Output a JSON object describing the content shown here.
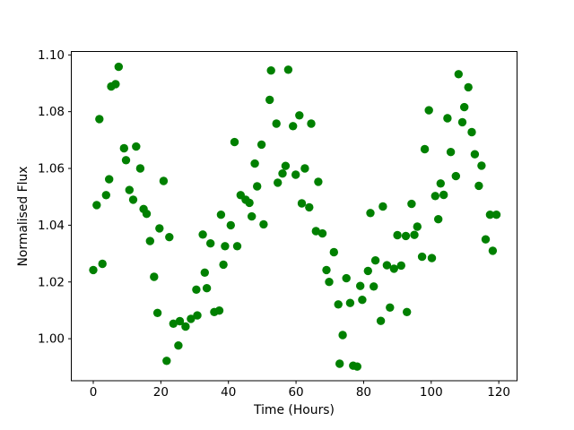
{
  "figure": {
    "background": "#ffffff",
    "border_color": "#000000"
  },
  "chart_data": {
    "type": "scatter",
    "title": "",
    "xlabel": "Time (Hours)",
    "ylabel": "Normalised Flux",
    "xlim": [
      -6.5,
      125.4
    ],
    "ylim": [
      0.9852,
      1.1012
    ],
    "xticks": [
      0,
      20,
      40,
      60,
      80,
      100,
      120
    ],
    "yticks": [
      1.0,
      1.02,
      1.04,
      1.06,
      1.08,
      1.1
    ],
    "ytick_decimals": 2,
    "grid": false,
    "legend_position": "none",
    "marker": {
      "shape": "circle",
      "color": "#008000",
      "radius_px": 4.7
    },
    "points": [
      [
        0.0,
        1.0242
      ],
      [
        1.0,
        1.0471
      ],
      [
        1.8,
        1.0774
      ],
      [
        2.7,
        1.0264
      ],
      [
        3.8,
        1.0506
      ],
      [
        4.7,
        1.0562
      ],
      [
        5.3,
        1.0889
      ],
      [
        6.6,
        1.0897
      ],
      [
        7.5,
        1.0958
      ],
      [
        9.1,
        1.0671
      ],
      [
        9.7,
        1.0629
      ],
      [
        10.7,
        1.0524
      ],
      [
        11.8,
        1.049
      ],
      [
        12.7,
        1.0677
      ],
      [
        13.9,
        1.06
      ],
      [
        14.9,
        1.0457
      ],
      [
        15.8,
        1.044
      ],
      [
        16.8,
        1.0344
      ],
      [
        18.0,
        1.0218
      ],
      [
        19.0,
        1.0091
      ],
      [
        19.6,
        1.0389
      ],
      [
        20.8,
        1.0556
      ],
      [
        21.7,
        0.9922
      ],
      [
        22.5,
        1.0358
      ],
      [
        23.7,
        1.0053
      ],
      [
        25.2,
        0.9976
      ],
      [
        25.6,
        1.0062
      ],
      [
        27.3,
        1.0043
      ],
      [
        28.9,
        1.007
      ],
      [
        30.5,
        1.0173
      ],
      [
        30.8,
        1.0082
      ],
      [
        32.4,
        1.0367
      ],
      [
        33.0,
        1.0233
      ],
      [
        33.6,
        1.0178
      ],
      [
        34.7,
        1.0336
      ],
      [
        35.8,
        1.0094
      ],
      [
        37.3,
        1.0099
      ],
      [
        37.8,
        1.0437
      ],
      [
        38.5,
        1.0261
      ],
      [
        39.0,
        1.0326
      ],
      [
        40.7,
        1.04
      ],
      [
        41.8,
        1.0693
      ],
      [
        42.6,
        1.0326
      ],
      [
        43.6,
        1.0506
      ],
      [
        45.1,
        1.049
      ],
      [
        46.2,
        1.0479
      ],
      [
        46.9,
        1.0431
      ],
      [
        47.8,
        1.0617
      ],
      [
        48.5,
        1.0537
      ],
      [
        49.8,
        1.0684
      ],
      [
        50.4,
        1.0403
      ],
      [
        52.2,
        1.0842
      ],
      [
        52.6,
        1.0945
      ],
      [
        54.2,
        1.0758
      ],
      [
        54.6,
        1.055
      ],
      [
        56.0,
        1.0582
      ],
      [
        56.9,
        1.0609
      ],
      [
        57.7,
        1.0948
      ],
      [
        59.1,
        1.0749
      ],
      [
        59.9,
        1.0578
      ],
      [
        61.0,
        1.0787
      ],
      [
        61.7,
        1.0477
      ],
      [
        62.6,
        1.06
      ],
      [
        63.9,
        1.0463
      ],
      [
        64.5,
        1.0758
      ],
      [
        65.9,
        1.0379
      ],
      [
        66.6,
        1.0553
      ],
      [
        67.8,
        1.0371
      ],
      [
        69.0,
        1.0242
      ],
      [
        69.8,
        1.02
      ],
      [
        71.2,
        1.0305
      ],
      [
        72.5,
        1.0121
      ],
      [
        72.9,
        0.9912
      ],
      [
        73.8,
        1.0013
      ],
      [
        74.9,
        1.0213
      ],
      [
        76.0,
        1.0126
      ],
      [
        76.9,
        0.9905
      ],
      [
        78.1,
        0.9902
      ],
      [
        79.0,
        1.0186
      ],
      [
        79.6,
        1.0137
      ],
      [
        81.3,
        1.0239
      ],
      [
        82.0,
        1.0443
      ],
      [
        83.0,
        1.0184
      ],
      [
        83.5,
        1.0276
      ],
      [
        85.1,
        1.0063
      ],
      [
        85.7,
        1.0466
      ],
      [
        86.9,
        1.0259
      ],
      [
        87.8,
        1.011
      ],
      [
        89.0,
        1.0247
      ],
      [
        90.0,
        1.0365
      ],
      [
        91.1,
        1.0258
      ],
      [
        92.5,
        1.0362
      ],
      [
        92.8,
        1.0094
      ],
      [
        94.2,
        1.0475
      ],
      [
        95.0,
        1.0366
      ],
      [
        95.9,
        1.0395
      ],
      [
        97.3,
        1.0289
      ],
      [
        98.1,
        1.0668
      ],
      [
        99.3,
        1.0805
      ],
      [
        100.2,
        1.0284
      ],
      [
        101.2,
        1.0503
      ],
      [
        102.1,
        1.0421
      ],
      [
        102.8,
        1.0547
      ],
      [
        103.7,
        1.0507
      ],
      [
        104.8,
        1.0777
      ],
      [
        105.8,
        1.0658
      ],
      [
        107.3,
        1.0573
      ],
      [
        108.1,
        1.0932
      ],
      [
        109.2,
        1.0763
      ],
      [
        109.8,
        1.0816
      ],
      [
        111.0,
        1.0886
      ],
      [
        112.0,
        1.0728
      ],
      [
        112.9,
        1.065
      ],
      [
        114.1,
        1.0539
      ],
      [
        114.9,
        1.061
      ],
      [
        116.1,
        1.035
      ],
      [
        117.4,
        1.0437
      ],
      [
        118.2,
        1.031
      ],
      [
        119.3,
        1.0437
      ]
    ]
  }
}
